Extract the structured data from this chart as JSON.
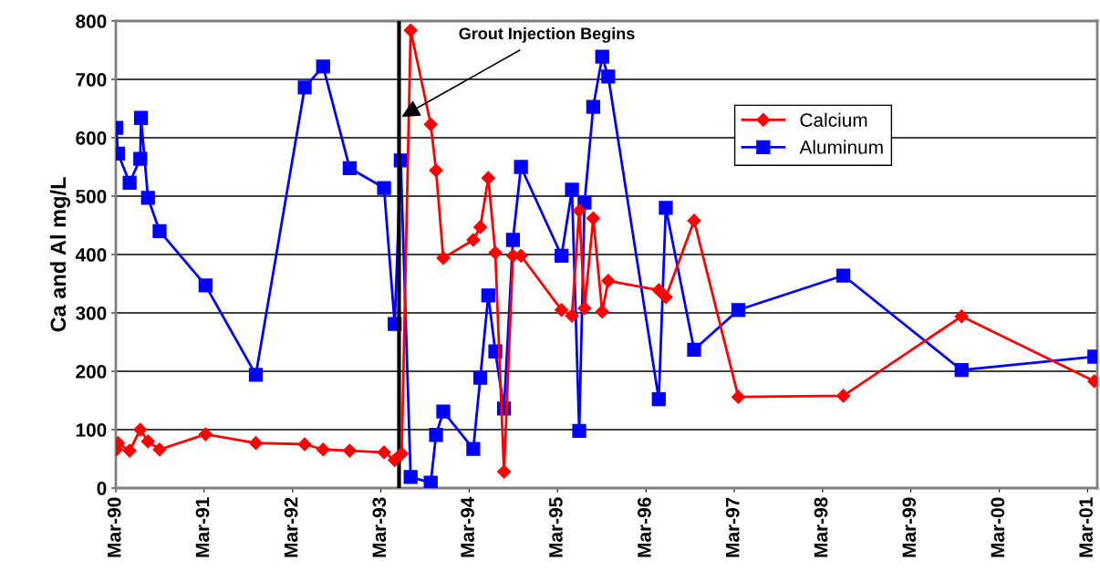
{
  "chart_data": {
    "type": "line",
    "ylabel": "Ca and Al mg/L",
    "xlim": [
      "1990-03-01",
      "2001-04-10"
    ],
    "ylim": [
      0,
      800
    ],
    "xticks": [
      {
        "value": "1990-03-01",
        "label": "Mar-90"
      },
      {
        "value": "1991-03-01",
        "label": "Mar-91"
      },
      {
        "value": "1992-03-01",
        "label": "Mar-92"
      },
      {
        "value": "1993-03-01",
        "label": "Mar-93"
      },
      {
        "value": "1994-03-01",
        "label": "Mar-94"
      },
      {
        "value": "1995-03-01",
        "label": "Mar-95"
      },
      {
        "value": "1996-03-01",
        "label": "Mar-96"
      },
      {
        "value": "1997-03-01",
        "label": "Mar-97"
      },
      {
        "value": "1998-03-01",
        "label": "Mar-98"
      },
      {
        "value": "1999-03-01",
        "label": "Mar-99"
      },
      {
        "value": "2000-03-01",
        "label": "Mar-00"
      },
      {
        "value": "2001-03-01",
        "label": "Mar-01"
      }
    ],
    "yticks": [
      0,
      100,
      200,
      300,
      400,
      500,
      600,
      700,
      800
    ],
    "grid": "y",
    "legend": "top right",
    "line_style": "solid",
    "ref_lines": [
      {
        "axis": "x",
        "value": "1993-05-15",
        "color": "#000000"
      }
    ],
    "annotations": [
      {
        "text": "Grout Injection Begins",
        "x": "1993-05-26",
        "y": 636
      }
    ],
    "series": [
      {
        "name": "Calcium",
        "color": "#ff0000",
        "marker": "diamond",
        "x": [
          "1990-03-03",
          "1990-03-10",
          "1990-04-27",
          "1990-06-10",
          "1990-07-12",
          "1990-08-29",
          "1991-03-07",
          "1991-10-01",
          "1992-04-20",
          "1992-07-05",
          "1992-10-23",
          "1993-03-14",
          "1993-04-27",
          "1993-05-26",
          "1993-07-02",
          "1993-09-23",
          "1993-10-15",
          "1993-11-14",
          "1994-03-18",
          "1994-04-16",
          "1994-05-19",
          "1994-06-17",
          "1994-07-23",
          "1994-08-29",
          "1994-10-01",
          "1995-03-18",
          "1995-04-30",
          "1995-05-30",
          "1995-06-21",
          "1995-07-27",
          "1995-09-02",
          "1995-09-27",
          "1996-04-23",
          "1996-05-22",
          "1996-09-16",
          "1997-03-18",
          "1998-05-26",
          "1999-09-27",
          "2001-03-29"
        ],
        "values": [
          66,
          77,
          64,
          100,
          80,
          66,
          92,
          77,
          75,
          66,
          64,
          61,
          48,
          59,
          784,
          623,
          544,
          394,
          425,
          447,
          531,
          403,
          28,
          398,
          398,
          305,
          295,
          475,
          308,
          462,
          302,
          355,
          339,
          327,
          458,
          156,
          158,
          294,
          183
        ]
      },
      {
        "name": "Aluminum",
        "color": "#0000ff",
        "marker": "square",
        "x": [
          "1990-03-03",
          "1990-03-10",
          "1990-04-27",
          "1990-06-10",
          "1990-06-13",
          "1990-07-12",
          "1990-08-29",
          "1991-03-07",
          "1991-10-01",
          "1992-04-20",
          "1992-07-05",
          "1992-10-23",
          "1993-03-14",
          "1993-04-27",
          "1993-05-22",
          "1993-07-02",
          "1993-09-23",
          "1993-10-15",
          "1993-11-14",
          "1994-03-18",
          "1994-04-16",
          "1994-05-19",
          "1994-06-17",
          "1994-07-23",
          "1994-08-29",
          "1994-10-01",
          "1995-03-18",
          "1995-04-30",
          "1995-05-30",
          "1995-06-21",
          "1995-07-27",
          "1995-09-02",
          "1995-09-27",
          "1996-04-23",
          "1996-05-22",
          "1996-09-16",
          "1997-03-18",
          "1998-05-26",
          "1999-09-27",
          "2001-03-29"
        ],
        "values": [
          617,
          573,
          523,
          564,
          634,
          497,
          440,
          347,
          194,
          686,
          722,
          548,
          514,
          281,
          561,
          19,
          9,
          91,
          131,
          67,
          189,
          330,
          234,
          136,
          425,
          550,
          398,
          511,
          98,
          489,
          653,
          739,
          705,
          152,
          480,
          237,
          305,
          364,
          202,
          225
        ]
      }
    ]
  }
}
